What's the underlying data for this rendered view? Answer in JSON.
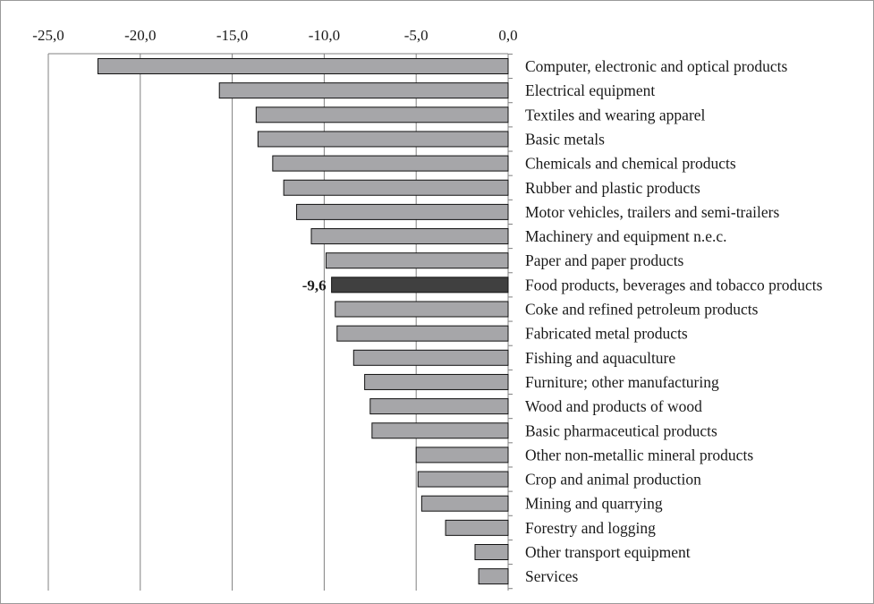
{
  "chart_data": {
    "type": "bar",
    "orientation": "horizontal",
    "title": "",
    "xlabel": "",
    "ylabel": "",
    "xlim": [
      -25,
      0
    ],
    "xticks": [
      -25,
      -20,
      -15,
      -10,
      -5,
      0
    ],
    "xtick_labels": [
      "-25,0",
      "-20,0",
      "-15,0",
      "-10,0",
      "-5,0",
      "0,0"
    ],
    "x_axis_position": "top",
    "grid": "vertical gridlines at each tick",
    "legend": "none",
    "categories": [
      "Computer, electronic and optical products",
      "Electrical equipment",
      "Textiles and wearing apparel",
      "Basic metals",
      "Chemicals and chemical products",
      "Rubber and plastic products",
      "Motor vehicles, trailers and semi-trailers",
      "Machinery and equipment n.e.c.",
      "Paper and paper products",
      "Food products, beverages and tobacco products",
      "Coke and refined petroleum products",
      "Fabricated metal products",
      "Fishing and aquaculture",
      "Furniture; other manufacturing",
      "Wood and products of wood",
      "Basic pharmaceutical products",
      "Other non-metallic mineral products",
      "Crop and animal production",
      "Mining and quarrying",
      "Forestry and logging",
      "Other transport equipment",
      "Services"
    ],
    "values": [
      -22.3,
      -15.7,
      -13.7,
      -13.6,
      -12.8,
      -12.2,
      -11.5,
      -10.7,
      -9.9,
      -9.6,
      -9.4,
      -9.3,
      -8.4,
      -7.8,
      -7.5,
      -7.4,
      -5.0,
      -4.9,
      -4.7,
      -3.4,
      -1.8,
      -1.6
    ],
    "highlight_index": 9,
    "data_labels": [
      {
        "index": 9,
        "text": "-9,6"
      }
    ],
    "colors": {
      "bar": "#a6a6a9",
      "highlight": "#404040",
      "bar_stroke": "#111111",
      "grid": "#808080",
      "frame": "#9a9a9a"
    }
  }
}
